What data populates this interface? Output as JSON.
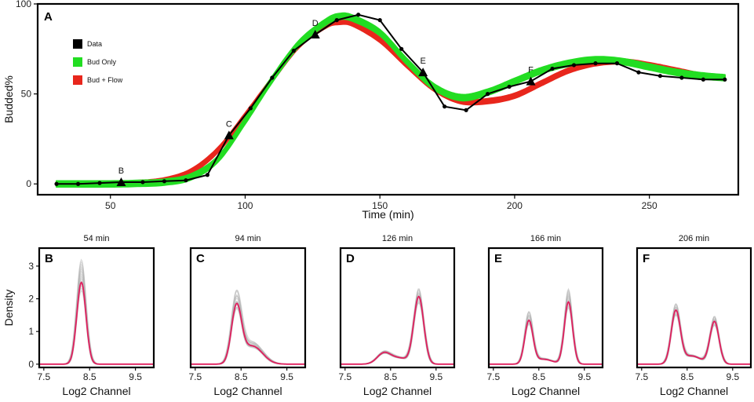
{
  "chart_data": [
    {
      "panel": "A",
      "type": "line",
      "xlabel": "Time (min)",
      "ylabel": "Budded%",
      "xlim": [
        23,
        283
      ],
      "ylim": [
        -6,
        100
      ],
      "x_ticks": [
        50,
        100,
        150,
        200,
        250
      ],
      "y_ticks": [
        0,
        50,
        100
      ],
      "legend": {
        "placement": "top-left",
        "entries": [
          {
            "label": "Data",
            "color": "#000000"
          },
          {
            "label": "Bud Only",
            "color": "#22dd22"
          },
          {
            "label": "Bud + Flow",
            "color": "#e8261c"
          }
        ]
      },
      "series": [
        {
          "name": "Data",
          "color": "#000000",
          "x": [
            30,
            38,
            46,
            54,
            62,
            70,
            78,
            86,
            94,
            102,
            110,
            118,
            126,
            134,
            142,
            150,
            158,
            166,
            174,
            182,
            190,
            198,
            206,
            214,
            222,
            230,
            238,
            246,
            254,
            262,
            270,
            278
          ],
          "y": [
            0,
            0,
            0.5,
            1,
            1,
            1.5,
            2,
            5,
            27,
            42,
            59,
            74,
            83,
            91,
            94,
            91,
            75,
            62,
            43,
            41,
            50,
            54,
            57,
            64,
            66,
            67,
            67,
            62,
            60,
            59,
            58,
            58
          ]
        },
        {
          "name": "Bud Only",
          "color": "#22dd22",
          "x": [
            30,
            50,
            60,
            70,
            80,
            90,
            100,
            110,
            120,
            130,
            135,
            140,
            150,
            160,
            170,
            180,
            190,
            200,
            210,
            220,
            230,
            240,
            250,
            260,
            270,
            278
          ],
          "y": [
            0,
            0,
            0.3,
            1,
            4,
            14,
            35,
            58,
            78,
            90,
            93,
            92,
            84,
            68,
            54,
            48,
            51,
            57,
            63,
            67,
            69,
            68,
            65,
            62,
            60,
            59
          ],
          "band_halfwidth": 1.6
        },
        {
          "name": "Bud + Flow",
          "color": "#e8261c",
          "x": [
            30,
            50,
            60,
            70,
            80,
            90,
            100,
            110,
            120,
            130,
            135,
            140,
            150,
            160,
            170,
            180,
            190,
            200,
            210,
            220,
            230,
            240,
            250,
            260,
            270,
            278
          ],
          "y": [
            0,
            0,
            0.5,
            2,
            7,
            19,
            38,
            58,
            77,
            88,
            90,
            89,
            80,
            66,
            53,
            46,
            46,
            49,
            56,
            63,
            67,
            68,
            66,
            63,
            60,
            59
          ],
          "band_halfwidth": 1.3
        }
      ],
      "annotations": [
        {
          "label": "B",
          "x": 54,
          "y": 1
        },
        {
          "label": "C",
          "x": 94,
          "y": 27
        },
        {
          "label": "D",
          "x": 126,
          "y": 83
        },
        {
          "label": "E",
          "x": 166,
          "y": 62
        },
        {
          "label": "F",
          "x": 206,
          "y": 57
        }
      ]
    },
    {
      "panel": "B",
      "type": "line",
      "title": "54 min",
      "xlabel": "Log2 Channel",
      "ylabel": "Density",
      "xlim": [
        7.4,
        9.9
      ],
      "ylim": [
        -0.1,
        3.55
      ],
      "x_ticks": [
        "7.5",
        "8.5",
        "9.5"
      ],
      "y_ticks": [
        0,
        1,
        2,
        3
      ],
      "peaks": [
        {
          "center": 8.32,
          "height": 2.5,
          "width": 0.1
        }
      ],
      "replicate_peak_max": 3.2
    },
    {
      "panel": "C",
      "type": "line",
      "title": "94 min",
      "xlabel": "Log2 Channel",
      "xlim": [
        7.4,
        9.9
      ],
      "ylim": [
        -0.1,
        3.55
      ],
      "x_ticks": [
        "7.5",
        "8.5",
        "9.5"
      ],
      "peaks": [
        {
          "center": 8.4,
          "height": 1.7,
          "width": 0.11
        },
        {
          "center": 8.75,
          "height": 0.55,
          "width": 0.22
        }
      ],
      "replicate_peak_max": 2.1
    },
    {
      "panel": "D",
      "type": "line",
      "title": "126 min",
      "xlabel": "Log2 Channel",
      "xlim": [
        7.4,
        9.9
      ],
      "ylim": [
        -0.1,
        3.55
      ],
      "x_ticks": [
        "7.5",
        "8.5",
        "9.5"
      ],
      "peaks": [
        {
          "center": 8.35,
          "height": 0.32,
          "width": 0.15
        },
        {
          "center": 8.7,
          "height": 0.18,
          "width": 0.2
        },
        {
          "center": 9.12,
          "height": 2.05,
          "width": 0.11
        }
      ],
      "replicate_peak_max": 2.3
    },
    {
      "panel": "E",
      "type": "line",
      "title": "166 min",
      "xlabel": "Log2 Channel",
      "xlim": [
        7.4,
        9.9
      ],
      "ylim": [
        -0.1,
        3.55
      ],
      "x_ticks": [
        "7.5",
        "8.5",
        "9.5"
      ],
      "peaks": [
        {
          "center": 8.28,
          "height": 1.3,
          "width": 0.09
        },
        {
          "center": 8.6,
          "height": 0.15,
          "width": 0.2
        },
        {
          "center": 9.15,
          "height": 1.9,
          "width": 0.09
        }
      ],
      "replicate_peak_max": 2.3
    },
    {
      "panel": "F",
      "type": "line",
      "title": "206 min",
      "xlabel": "Log2 Channel",
      "xlim": [
        7.4,
        9.9
      ],
      "ylim": [
        -0.1,
        3.55
      ],
      "x_ticks": [
        "7.5",
        "8.5",
        "9.5"
      ],
      "peaks": [
        {
          "center": 8.25,
          "height": 1.6,
          "width": 0.1
        },
        {
          "center": 8.6,
          "height": 0.25,
          "width": 0.2
        },
        {
          "center": 9.1,
          "height": 1.3,
          "width": 0.1
        }
      ],
      "replicate_peak_max": 1.8
    }
  ],
  "colors": {
    "data": "#000000",
    "bud_only": "#22dd22",
    "bud_flow": "#e8261c",
    "density_line": "#e01f5e",
    "replicates": "#b0b0b0"
  }
}
